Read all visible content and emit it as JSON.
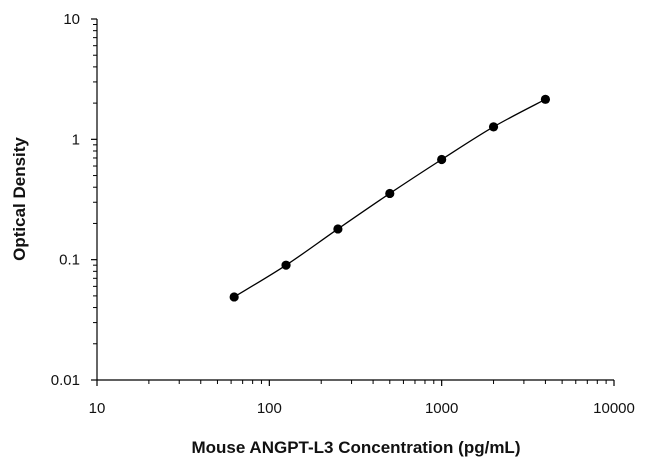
{
  "chart_data": {
    "type": "scatter",
    "xlabel": "Mouse ANGPT-L3 Concentration (pg/mL)",
    "ylabel": "Optical Density",
    "x_scale": "log",
    "y_scale": "log",
    "xlim": [
      10,
      10000
    ],
    "ylim": [
      0.01,
      10
    ],
    "x_ticks": [
      {
        "value": 10,
        "label": "10"
      },
      {
        "value": 100,
        "label": "100"
      },
      {
        "value": 1000,
        "label": "1000"
      },
      {
        "value": 10000,
        "label": "10000"
      }
    ],
    "y_ticks": [
      {
        "value": 0.01,
        "label": "0.01"
      },
      {
        "value": 0.1,
        "label": "0.1"
      },
      {
        "value": 1,
        "label": "1"
      },
      {
        "value": 10,
        "label": "10"
      }
    ],
    "grid": false,
    "fit_line": true,
    "marker_color": "#000000",
    "series": [
      {
        "x": [
          62.5,
          125,
          250,
          500,
          1000,
          2000,
          4000
        ],
        "y": [
          0.049,
          0.09,
          0.18,
          0.355,
          0.68,
          1.27,
          2.15
        ]
      }
    ]
  }
}
